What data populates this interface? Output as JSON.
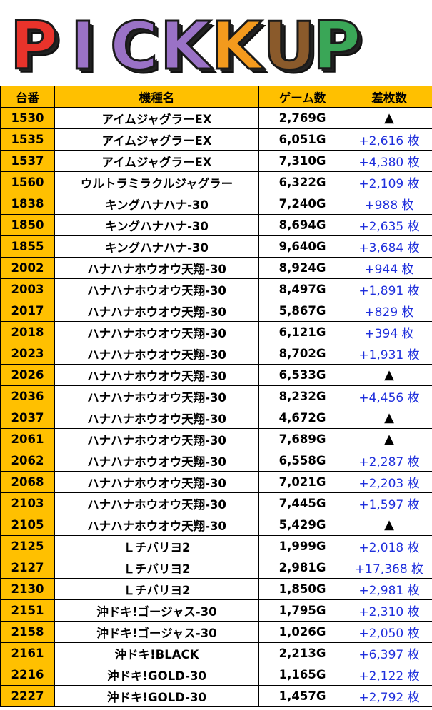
{
  "banner": {
    "letters": [
      {
        "char": "P",
        "color": "#e8332b"
      },
      {
        "char": "I",
        "color": "#9a72c6"
      },
      {
        "char": "C",
        "color": "#9a72c6"
      },
      {
        "char": "K",
        "color": "#9a72c6"
      },
      {
        "char": "K",
        "color": "#f39a1d"
      },
      {
        "char": "U",
        "color": "#8a5a2b"
      },
      {
        "char": "P",
        "color": "#3aa657"
      }
    ]
  },
  "table": {
    "headers": [
      "台番",
      "機種名",
      "ゲーム数",
      "差枚数"
    ],
    "rows": [
      {
        "num": "1530",
        "name": "アイムジャグラーEX",
        "games": "2,769G",
        "diff": "▲",
        "minus": true
      },
      {
        "num": "1535",
        "name": "アイムジャグラーEX",
        "games": "6,051G",
        "diff": "+2,616 枚",
        "minus": false
      },
      {
        "num": "1537",
        "name": "アイムジャグラーEX",
        "games": "7,310G",
        "diff": "+4,380 枚",
        "minus": false
      },
      {
        "num": "1560",
        "name": "ウルトラミラクルジャグラー",
        "games": "6,322G",
        "diff": "+2,109 枚",
        "minus": false
      },
      {
        "num": "1838",
        "name": "キングハナハナ-30",
        "games": "7,240G",
        "diff": "+988 枚",
        "minus": false
      },
      {
        "num": "1850",
        "name": "キングハナハナ-30",
        "games": "8,694G",
        "diff": "+2,635 枚",
        "minus": false
      },
      {
        "num": "1855",
        "name": "キングハナハナ-30",
        "games": "9,640G",
        "diff": "+3,684 枚",
        "minus": false
      },
      {
        "num": "2002",
        "name": "ハナハナホウオウ天翔-30",
        "games": "8,924G",
        "diff": "+944 枚",
        "minus": false
      },
      {
        "num": "2003",
        "name": "ハナハナホウオウ天翔-30",
        "games": "8,497G",
        "diff": "+1,891 枚",
        "minus": false
      },
      {
        "num": "2017",
        "name": "ハナハナホウオウ天翔-30",
        "games": "5,867G",
        "diff": "+829 枚",
        "minus": false
      },
      {
        "num": "2018",
        "name": "ハナハナホウオウ天翔-30",
        "games": "6,121G",
        "diff": "+394 枚",
        "minus": false
      },
      {
        "num": "2023",
        "name": "ハナハナホウオウ天翔-30",
        "games": "8,702G",
        "diff": "+1,931 枚",
        "minus": false
      },
      {
        "num": "2026",
        "name": "ハナハナホウオウ天翔-30",
        "games": "6,533G",
        "diff": "▲",
        "minus": true
      },
      {
        "num": "2036",
        "name": "ハナハナホウオウ天翔-30",
        "games": "8,232G",
        "diff": "+4,456 枚",
        "minus": false
      },
      {
        "num": "2037",
        "name": "ハナハナホウオウ天翔-30",
        "games": "4,672G",
        "diff": "▲",
        "minus": true
      },
      {
        "num": "2061",
        "name": "ハナハナホウオウ天翔-30",
        "games": "7,689G",
        "diff": "▲",
        "minus": true
      },
      {
        "num": "2062",
        "name": "ハナハナホウオウ天翔-30",
        "games": "6,558G",
        "diff": "+2,287 枚",
        "minus": false
      },
      {
        "num": "2068",
        "name": "ハナハナホウオウ天翔-30",
        "games": "7,021G",
        "diff": "+2,203 枚",
        "minus": false
      },
      {
        "num": "2103",
        "name": "ハナハナホウオウ天翔-30",
        "games": "7,445G",
        "diff": "+1,597 枚",
        "minus": false
      },
      {
        "num": "2105",
        "name": "ハナハナホウオウ天翔-30",
        "games": "5,429G",
        "diff": "▲",
        "minus": true
      },
      {
        "num": "2125",
        "name": "Ｌチバリヨ2",
        "games": "1,999G",
        "diff": "+2,018 枚",
        "minus": false
      },
      {
        "num": "2127",
        "name": "Ｌチバリヨ2",
        "games": "2,981G",
        "diff": "+17,368 枚",
        "minus": false
      },
      {
        "num": "2130",
        "name": "Ｌチバリヨ2",
        "games": "1,850G",
        "diff": "+2,981 枚",
        "minus": false
      },
      {
        "num": "2151",
        "name": "沖ドキ!ゴージャス-30",
        "games": "1,795G",
        "diff": "+2,310 枚",
        "minus": false
      },
      {
        "num": "2158",
        "name": "沖ドキ!ゴージャス-30",
        "games": "1,026G",
        "diff": "+2,050 枚",
        "minus": false
      },
      {
        "num": "2161",
        "name": "沖ドキ!BLACK",
        "games": "2,213G",
        "diff": "+6,397 枚",
        "minus": false
      },
      {
        "num": "2216",
        "name": "沖ドキ!GOLD-30",
        "games": "1,165G",
        "diff": "+2,122 枚",
        "minus": false
      },
      {
        "num": "2227",
        "name": "沖ドキ!GOLD-30",
        "games": "1,457G",
        "diff": "+2,792 枚",
        "minus": false
      }
    ]
  }
}
